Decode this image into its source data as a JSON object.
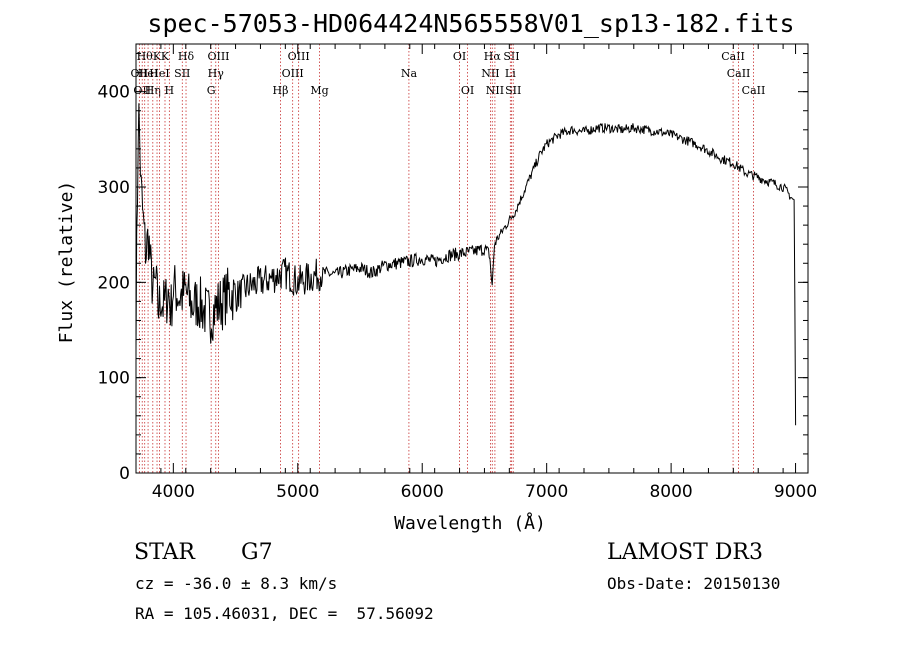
{
  "chart_data": {
    "type": "line",
    "title": "spec-57053-HD064424N565558V01_sp13-182.fits",
    "xlabel": "Wavelength (Å)",
    "ylabel": "Flux (relative)",
    "xlim": [
      3700,
      9100
    ],
    "ylim": [
      0,
      450
    ],
    "x_ticks": [
      4000,
      5000,
      6000,
      7000,
      8000,
      9000
    ],
    "y_ticks": [
      0,
      100,
      200,
      300,
      400
    ],
    "x_minor_step": 200,
    "y_minor_step": 20,
    "series": [
      {
        "name": "flux",
        "x": [
          3700,
          3720,
          3740,
          3760,
          3780,
          3800,
          3820,
          3840,
          3860,
          3880,
          3900,
          3920,
          3940,
          3960,
          3980,
          4000,
          4050,
          4100,
          4150,
          4200,
          4250,
          4300,
          4350,
          4400,
          4450,
          4500,
          4600,
          4700,
          4800,
          4900,
          5000,
          5100,
          5200,
          5300,
          5400,
          5500,
          5600,
          5700,
          5800,
          5900,
          6000,
          6100,
          6200,
          6300,
          6400,
          6500,
          6540,
          6563,
          6580,
          6600,
          6650,
          6700,
          6750,
          6800,
          6850,
          6900,
          6950,
          7000,
          7100,
          7200,
          7300,
          7400,
          7500,
          7600,
          7700,
          7800,
          7900,
          8000,
          8100,
          8200,
          8300,
          8400,
          8500,
          8550,
          8600,
          8700,
          8800,
          8900,
          8960,
          8990,
          9000
        ],
        "y": [
          160,
          390,
          300,
          260,
          230,
          250,
          210,
          190,
          200,
          170,
          185,
          175,
          180,
          190,
          170,
          195,
          185,
          190,
          175,
          180,
          170,
          165,
          175,
          180,
          190,
          185,
          195,
          200,
          205,
          210,
          200,
          205,
          210,
          208,
          212,
          215,
          210,
          218,
          220,
          222,
          225,
          222,
          228,
          230,
          232,
          235,
          230,
          195,
          240,
          245,
          255,
          265,
          275,
          290,
          305,
          320,
          335,
          345,
          355,
          360,
          358,
          362,
          362,
          360,
          362,
          360,
          358,
          355,
          350,
          345,
          338,
          330,
          325,
          320,
          315,
          310,
          305,
          300,
          290,
          285,
          50
        ]
      }
    ],
    "lines": [
      {
        "wl": 3727,
        "labels": [
          "OII"
        ],
        "rows": [
          1
        ]
      },
      {
        "wl": 3750,
        "labels": [
          "OII"
        ],
        "rows": [
          2
        ]
      },
      {
        "wl": 3770,
        "labels": [
          "Hθ"
        ],
        "rows": [
          0
        ]
      },
      {
        "wl": 3797,
        "labels": [
          "HeI"
        ],
        "rows": [
          1
        ]
      },
      {
        "wl": 3835,
        "labels": [
          "Hη"
        ],
        "rows": [
          2
        ]
      },
      {
        "wl": 3869,
        "labels": [
          "K"
        ],
        "rows": [
          0
        ]
      },
      {
        "wl": 3889,
        "labels": [
          "HeI"
        ],
        "rows": [
          1
        ]
      },
      {
        "wl": 3933,
        "labels": [
          "K"
        ],
        "rows": [
          0
        ]
      },
      {
        "wl": 3968,
        "labels": [
          "H"
        ],
        "rows": [
          2
        ]
      },
      {
        "wl": 4072,
        "labels": [
          "SII"
        ],
        "rows": [
          1
        ]
      },
      {
        "wl": 4102,
        "labels": [
          "Hδ"
        ],
        "rows": [
          0
        ]
      },
      {
        "wl": 4304,
        "labels": [
          "G"
        ],
        "rows": [
          2
        ]
      },
      {
        "wl": 4341,
        "labels": [
          "Hγ"
        ],
        "rows": [
          1
        ]
      },
      {
        "wl": 4363,
        "labels": [
          "OIII"
        ],
        "rows": [
          0
        ]
      },
      {
        "wl": 4861,
        "labels": [
          "Hβ"
        ],
        "rows": [
          2
        ]
      },
      {
        "wl": 4959,
        "labels": [
          "OIII"
        ],
        "rows": [
          1
        ]
      },
      {
        "wl": 5007,
        "labels": [
          "OIII"
        ],
        "rows": [
          0
        ]
      },
      {
        "wl": 5175,
        "labels": [
          "Mg"
        ],
        "rows": [
          2
        ]
      },
      {
        "wl": 5893,
        "labels": [
          "Na"
        ],
        "rows": [
          1
        ]
      },
      {
        "wl": 6300,
        "labels": [
          "OI"
        ],
        "rows": [
          0
        ]
      },
      {
        "wl": 6364,
        "labels": [
          "OI"
        ],
        "rows": [
          2
        ]
      },
      {
        "wl": 6548,
        "labels": [
          "NII"
        ],
        "rows": [
          1
        ]
      },
      {
        "wl": 6563,
        "labels": [
          "Hα"
        ],
        "rows": [
          0
        ]
      },
      {
        "wl": 6584,
        "labels": [
          "NII"
        ],
        "rows": [
          2
        ]
      },
      {
        "wl": 6708,
        "labels": [
          "Li"
        ],
        "rows": [
          1
        ]
      },
      {
        "wl": 6717,
        "labels": [
          "SII"
        ],
        "rows": [
          0
        ]
      },
      {
        "wl": 6731,
        "labels": [
          "SII"
        ],
        "rows": [
          2
        ]
      },
      {
        "wl": 8498,
        "labels": [
          "CaII"
        ],
        "rows": [
          0
        ]
      },
      {
        "wl": 8542,
        "labels": [
          "CaII"
        ],
        "rows": [
          1
        ]
      },
      {
        "wl": 8662,
        "labels": [
          "CaII"
        ],
        "rows": [
          2
        ]
      }
    ]
  },
  "info": {
    "object_class": "STAR",
    "subclass": "G7",
    "survey": "LAMOST DR3",
    "cz": "cz = -36.0 ± 8.3 km/s",
    "obs_date": "Obs-Date: 20150130",
    "coords": "RA = 105.46031, DEC =  57.56092"
  },
  "colors": {
    "line": "#000000",
    "marker": "#c83232",
    "axis": "#000000"
  }
}
